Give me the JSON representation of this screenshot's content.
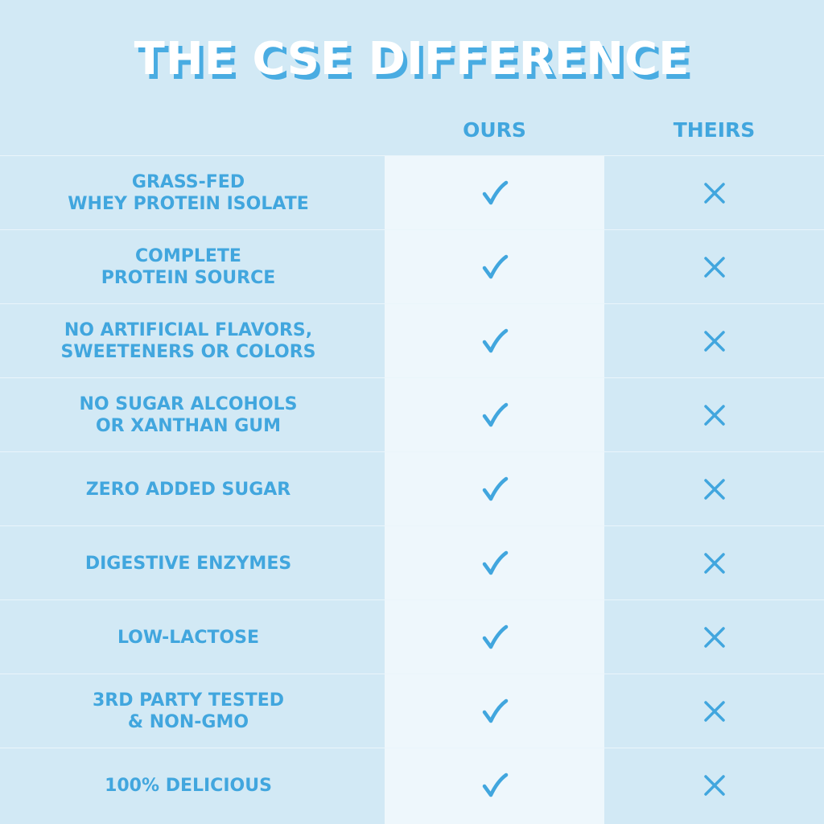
{
  "title": "THE CSE DIFFERENCE",
  "columns": {
    "ours": "OURS",
    "theirs": "THEIRS"
  },
  "icons": {
    "ours": "check-icon",
    "theirs": "x-icon"
  },
  "colors": {
    "background": "#d2e9f5",
    "ours_column": "#eef7fc",
    "accent": "#41a6de",
    "title_fill": "#ffffff",
    "title_shadow": "#49ace2"
  },
  "rows": [
    {
      "feature": "GRASS-FED\nWHEY PROTEIN ISOLATE",
      "ours": true,
      "theirs": false
    },
    {
      "feature": "COMPLETE\nPROTEIN SOURCE",
      "ours": true,
      "theirs": false
    },
    {
      "feature": "NO ARTIFICIAL FLAVORS,\nSWEETENERS OR COLORS",
      "ours": true,
      "theirs": false
    },
    {
      "feature": "NO SUGAR ALCOHOLS\nOR XANTHAN GUM",
      "ours": true,
      "theirs": false
    },
    {
      "feature": "ZERO ADDED SUGAR",
      "ours": true,
      "theirs": false
    },
    {
      "feature": "DIGESTIVE ENZYMES",
      "ours": true,
      "theirs": false
    },
    {
      "feature": "LOW-LACTOSE",
      "ours": true,
      "theirs": false
    },
    {
      "feature": "3RD PARTY TESTED\n& NON-GMO",
      "ours": true,
      "theirs": false
    },
    {
      "feature": "100% DELICIOUS",
      "ours": true,
      "theirs": false
    }
  ]
}
